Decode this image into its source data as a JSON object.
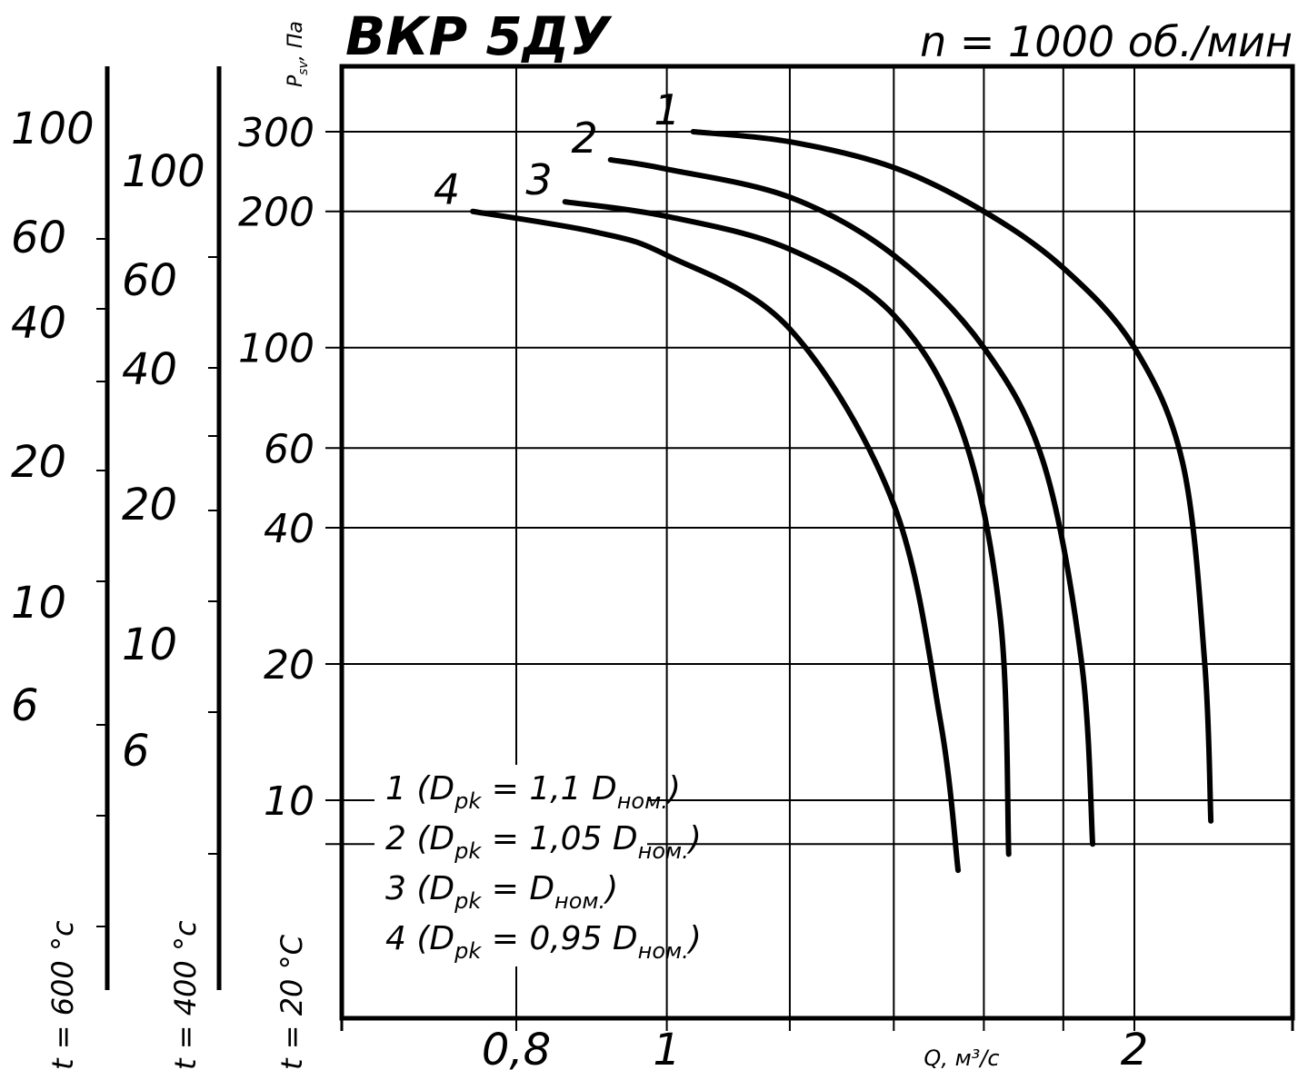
{
  "chart_data": {
    "type": "line",
    "title": "ВКР 5ДУ",
    "subtitle": "n = 1000 об./мин",
    "ylabel_main": "P",
    "ylabel_sub": "sv",
    "ylabel_unit": ", Па",
    "xlabel": "Q, м³/с",
    "x_scale": "log",
    "y_scale": "log",
    "xlim": [
      0.7,
      2.3
    ],
    "ylim": [
      6.5,
      420
    ],
    "x_ticks": [
      {
        "value": 0.8,
        "label": "0,8"
      },
      {
        "value": 1.0,
        "label": "1"
      },
      {
        "value": 2.0,
        "label": "2"
      }
    ],
    "x_minor_ticks": [
      1.2,
      1.4,
      1.6,
      1.8
    ],
    "y_ticks": [
      {
        "value": 10,
        "label": "10"
      },
      {
        "value": 20,
        "label": "20"
      },
      {
        "value": 40,
        "label": "40"
      },
      {
        "value": 60,
        "label": "60"
      },
      {
        "value": 100,
        "label": "100"
      },
      {
        "value": 200,
        "label": "200"
      },
      {
        "value": 300,
        "label": "300"
      }
    ],
    "y_minor_ticks": [
      8
    ],
    "grid": true,
    "series": [
      {
        "name": "1",
        "x": [
          1.04,
          1.2,
          1.4,
          1.6,
          1.8,
          2.0,
          2.15,
          2.22,
          2.24
        ],
        "y": [
          300,
          285,
          250,
          200,
          150,
          100,
          55,
          20,
          9
        ]
      },
      {
        "name": "2",
        "x": [
          0.92,
          1.0,
          1.2,
          1.4,
          1.6,
          1.75,
          1.85,
          1.88
        ],
        "y": [
          260,
          248,
          215,
          160,
          100,
          55,
          20,
          8
        ]
      },
      {
        "name": "3",
        "x": [
          0.86,
          1.0,
          1.2,
          1.4,
          1.55,
          1.64,
          1.66
        ],
        "y": [
          210,
          195,
          165,
          118,
          65,
          25,
          7.6
        ]
      },
      {
        "name": "4",
        "x": [
          0.75,
          0.9,
          1.0,
          1.2,
          1.4,
          1.5,
          1.54
        ],
        "y": [
          200,
          180,
          160,
          110,
          45,
          15,
          7
        ]
      }
    ],
    "legend": [
      {
        "num": "1 (D",
        "sub": "pk",
        "mid": " = 1,1 D",
        "sub2": "ном.",
        "end": ")"
      },
      {
        "num": "2 (D",
        "sub": "pk",
        "mid": " = 1,05 D",
        "sub2": "ном.",
        "end": ")"
      },
      {
        "num": "3 (D",
        "sub": "pk",
        "mid": " = D",
        "sub2": "ном.",
        "end": ")"
      },
      {
        "num": "4 (D",
        "sub": "pk",
        "mid": " = 0,95 D",
        "sub2": "ном.",
        "end": ")"
      }
    ],
    "temperature_scales": [
      {
        "label": "t = 600 °с",
        "ticks": [
          "100",
          "60",
          "40",
          "20",
          "10",
          "6"
        ]
      },
      {
        "label": "t = 400 °с",
        "ticks": [
          "100",
          "60",
          "40",
          "20",
          "10",
          "6"
        ]
      },
      {
        "label": "t = 20 °С"
      }
    ]
  }
}
